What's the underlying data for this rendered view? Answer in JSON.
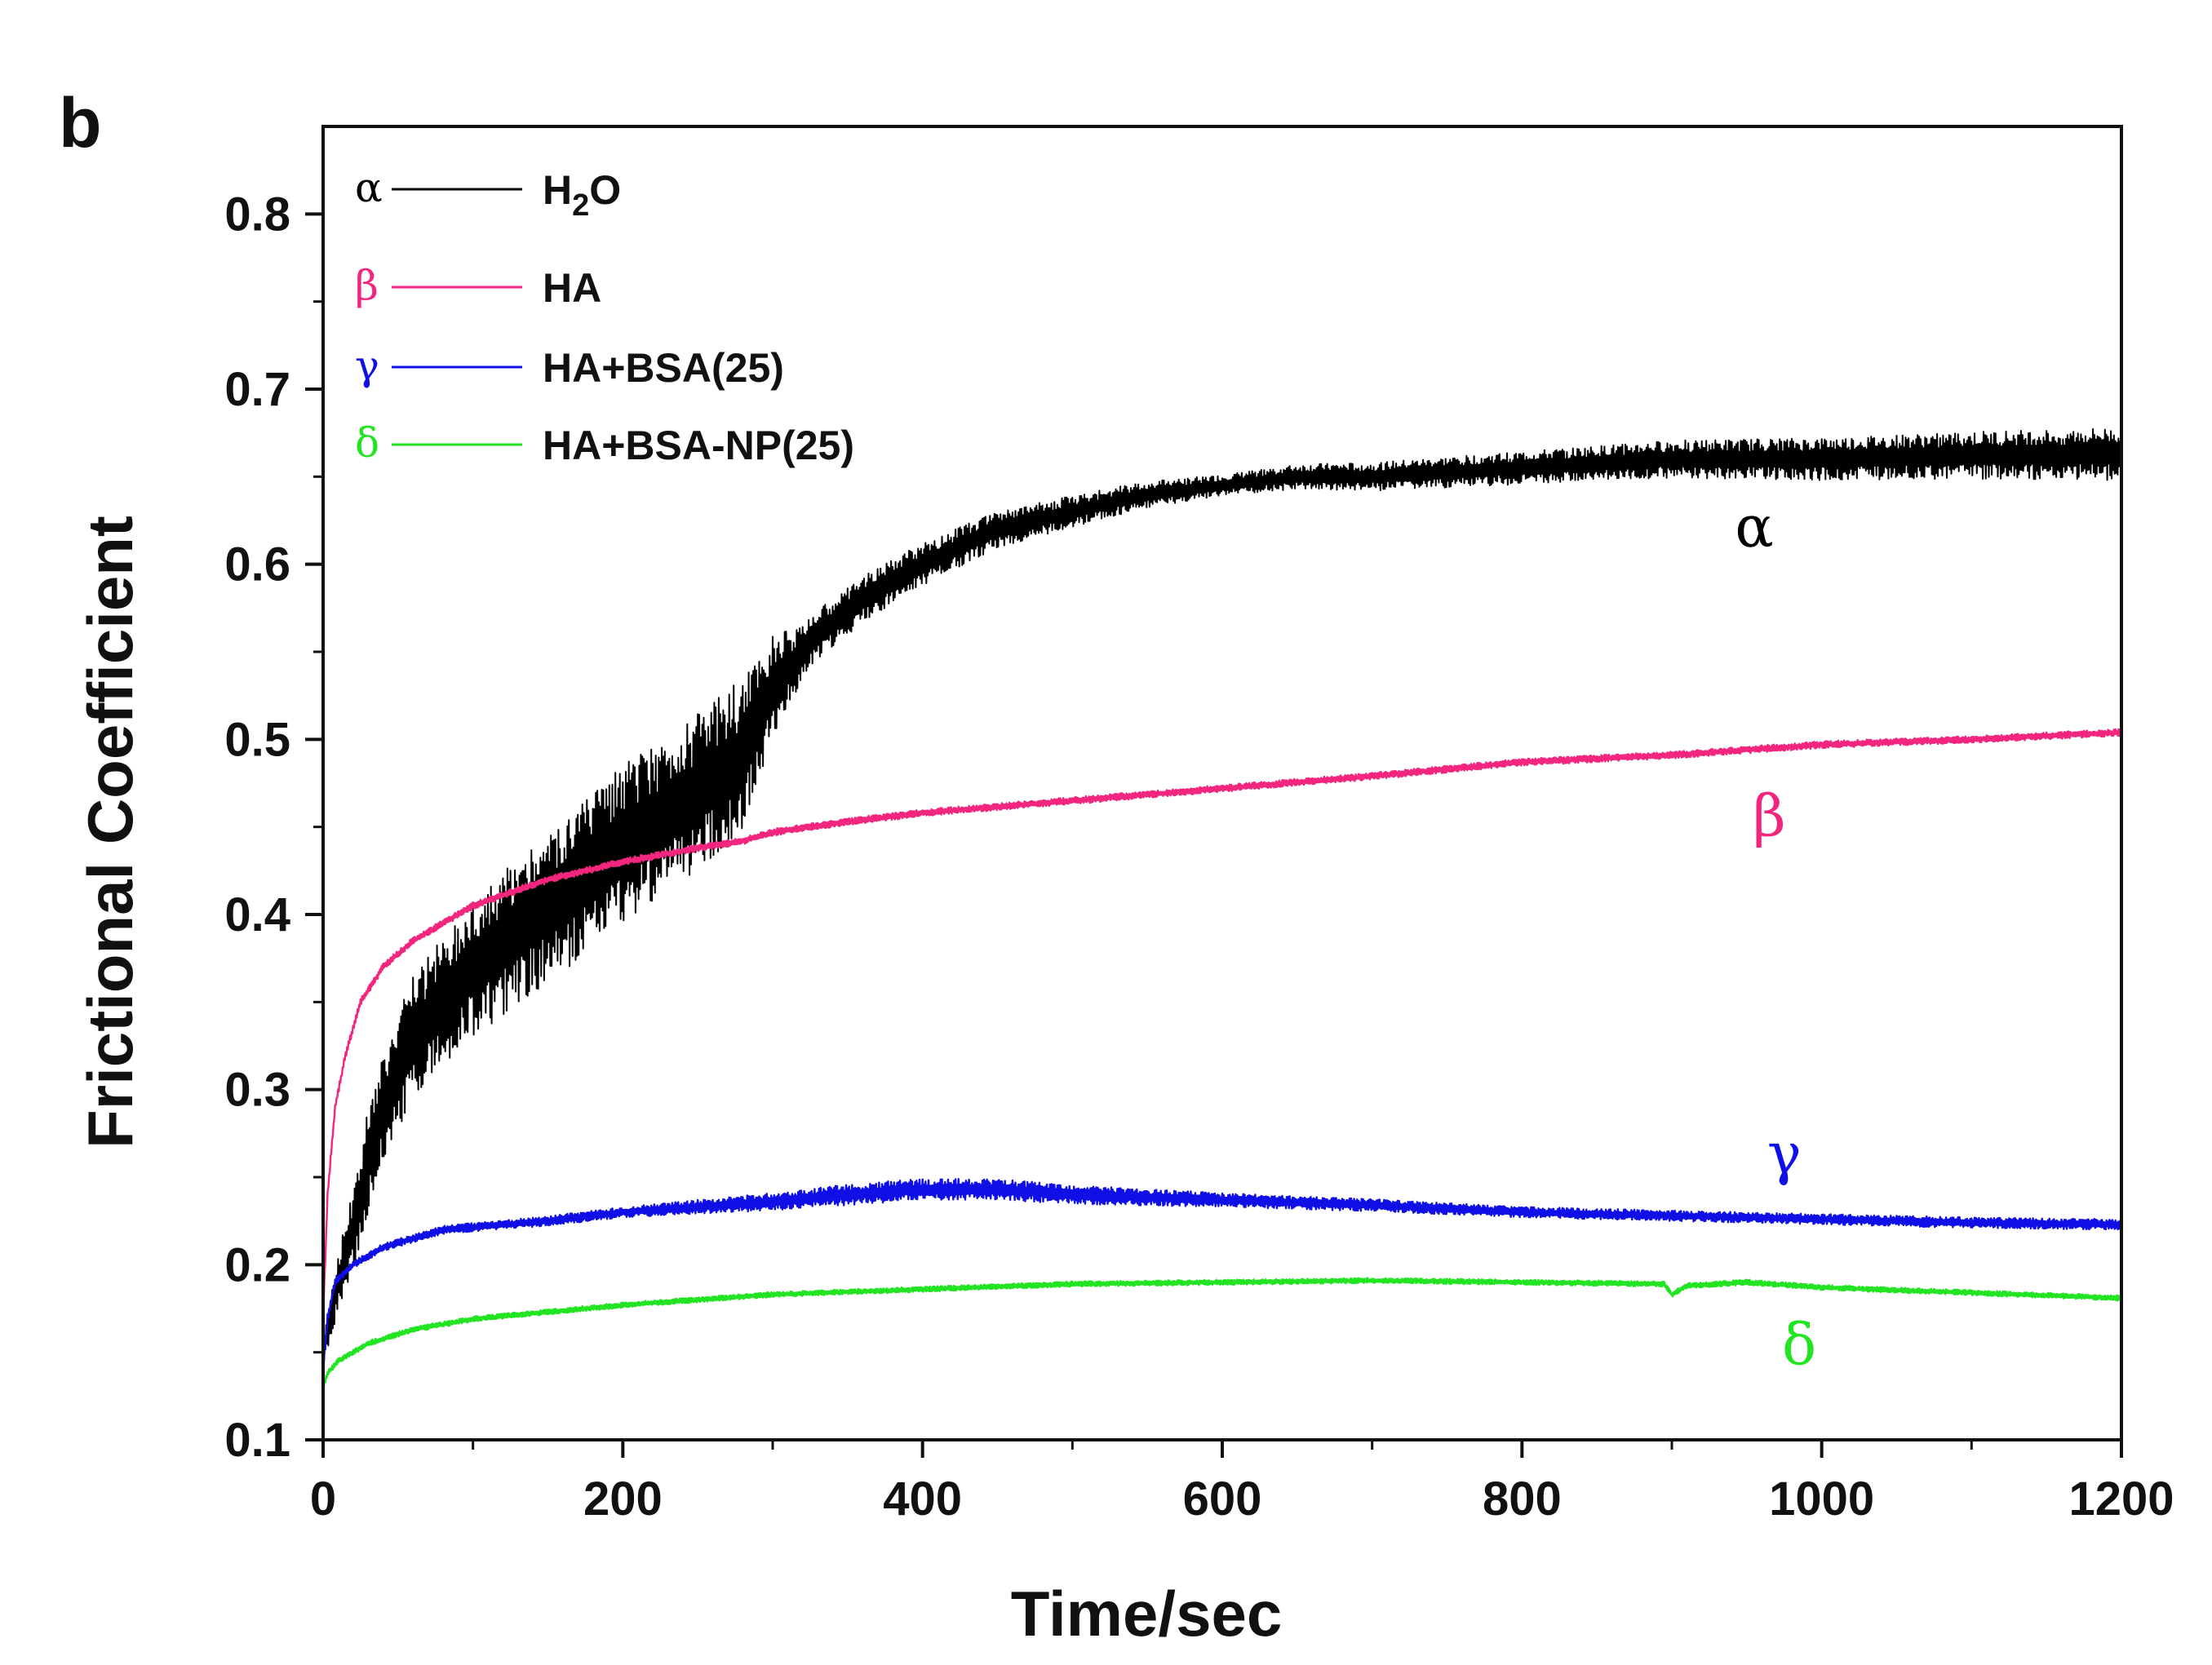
{
  "panel_label": "b",
  "chart_data": {
    "type": "line",
    "xlabel": "Time/sec",
    "ylabel": "Frictional Coefficient",
    "xlim": [
      0,
      1200
    ],
    "ylim": [
      0.1,
      0.85
    ],
    "xticks": [
      0,
      200,
      400,
      600,
      800,
      1000,
      1200
    ],
    "xtick_labels": [
      "0",
      "200",
      "400",
      "600",
      "800",
      "1000",
      "1200"
    ],
    "yticks": [
      0.1,
      0.2,
      0.3,
      0.4,
      0.5,
      0.6,
      0.7,
      0.8
    ],
    "ytick_labels": [
      "0.1",
      "0.2",
      "0.3",
      "0.4",
      "0.5",
      "0.6",
      "0.7",
      "0.8"
    ],
    "grid": false,
    "legend_position": "top-left",
    "series": [
      {
        "key": "alpha",
        "symbol": "α",
        "name_base": "H",
        "name_sub": "2",
        "name_tail": "O",
        "name": "H2O",
        "color": "#000000",
        "annotation": "α",
        "annotation_pos": [
          955,
          0.61
        ],
        "points": [
          [
            0,
            0.15
          ],
          [
            5,
            0.17
          ],
          [
            10,
            0.19
          ],
          [
            20,
            0.22
          ],
          [
            30,
            0.26
          ],
          [
            40,
            0.29
          ],
          [
            50,
            0.31
          ],
          [
            60,
            0.33
          ],
          [
            80,
            0.35
          ],
          [
            100,
            0.37
          ],
          [
            130,
            0.39
          ],
          [
            160,
            0.41
          ],
          [
            200,
            0.44
          ],
          [
            250,
            0.47
          ],
          [
            280,
            0.49
          ],
          [
            300,
            0.53
          ],
          [
            330,
            0.56
          ],
          [
            360,
            0.58
          ],
          [
            400,
            0.6
          ],
          [
            450,
            0.62
          ],
          [
            500,
            0.63
          ],
          [
            550,
            0.64
          ],
          [
            600,
            0.645
          ],
          [
            650,
            0.65
          ],
          [
            700,
            0.65
          ],
          [
            800,
            0.655
          ],
          [
            900,
            0.66
          ],
          [
            1000,
            0.66
          ],
          [
            1100,
            0.662
          ],
          [
            1200,
            0.663
          ]
        ],
        "noise": [
          [
            0,
            0.01
          ],
          [
            30,
            0.03
          ],
          [
            100,
            0.04
          ],
          [
            200,
            0.045
          ],
          [
            280,
            0.045
          ],
          [
            320,
            0.015
          ],
          [
            400,
            0.012
          ],
          [
            600,
            0.006
          ],
          [
            700,
            0.008
          ],
          [
            1000,
            0.012
          ],
          [
            1200,
            0.015
          ]
        ]
      },
      {
        "key": "beta",
        "symbol": "β",
        "name": "HA",
        "color": "#f2267e",
        "annotation": "β",
        "annotation_pos": [
          965,
          0.445
        ],
        "points": [
          [
            0,
            0.17
          ],
          [
            3,
            0.24
          ],
          [
            8,
            0.29
          ],
          [
            15,
            0.32
          ],
          [
            25,
            0.35
          ],
          [
            40,
            0.37
          ],
          [
            60,
            0.385
          ],
          [
            100,
            0.405
          ],
          [
            150,
            0.42
          ],
          [
            200,
            0.43
          ],
          [
            250,
            0.438
          ],
          [
            280,
            0.442
          ],
          [
            300,
            0.447
          ],
          [
            350,
            0.453
          ],
          [
            400,
            0.458
          ],
          [
            500,
            0.465
          ],
          [
            600,
            0.472
          ],
          [
            700,
            0.479
          ],
          [
            800,
            0.487
          ],
          [
            900,
            0.491
          ],
          [
            1000,
            0.497
          ],
          [
            1100,
            0.5
          ],
          [
            1200,
            0.504
          ]
        ],
        "noise": [
          [
            0,
            0.002
          ],
          [
            1200,
            0.002
          ]
        ]
      },
      {
        "key": "gamma",
        "symbol": "γ",
        "name": "HA+BSA(25)",
        "color": "#1010e6",
        "annotation": "γ",
        "annotation_pos": [
          975,
          0.252
        ],
        "points": [
          [
            0,
            0.14
          ],
          [
            3,
            0.17
          ],
          [
            8,
            0.19
          ],
          [
            20,
            0.2
          ],
          [
            40,
            0.21
          ],
          [
            80,
            0.22
          ],
          [
            150,
            0.225
          ],
          [
            200,
            0.23
          ],
          [
            300,
            0.236
          ],
          [
            350,
            0.24
          ],
          [
            400,
            0.243
          ],
          [
            450,
            0.243
          ],
          [
            500,
            0.24
          ],
          [
            600,
            0.237
          ],
          [
            700,
            0.234
          ],
          [
            800,
            0.23
          ],
          [
            900,
            0.228
          ],
          [
            1000,
            0.226
          ],
          [
            1100,
            0.224
          ],
          [
            1200,
            0.223
          ]
        ],
        "noise": [
          [
            0,
            0.002
          ],
          [
            200,
            0.003
          ],
          [
            350,
            0.006
          ],
          [
            450,
            0.006
          ],
          [
            600,
            0.004
          ],
          [
            800,
            0.003
          ],
          [
            1200,
            0.003
          ]
        ]
      },
      {
        "key": "delta",
        "symbol": "δ",
        "name": "HA+BSA-NP(25)",
        "color": "#22e422",
        "annotation": "δ",
        "annotation_pos": [
          985,
          0.143
        ],
        "points": [
          [
            0,
            0.13
          ],
          [
            3,
            0.138
          ],
          [
            10,
            0.145
          ],
          [
            30,
            0.155
          ],
          [
            60,
            0.163
          ],
          [
            100,
            0.169
          ],
          [
            200,
            0.177
          ],
          [
            300,
            0.183
          ],
          [
            400,
            0.186
          ],
          [
            500,
            0.189
          ],
          [
            600,
            0.19
          ],
          [
            700,
            0.191
          ],
          [
            800,
            0.19
          ],
          [
            895,
            0.189
          ],
          [
            900,
            0.183
          ],
          [
            910,
            0.188
          ],
          [
            950,
            0.19
          ],
          [
            1000,
            0.187
          ],
          [
            1100,
            0.184
          ],
          [
            1200,
            0.181
          ]
        ],
        "noise": [
          [
            0,
            0.0015
          ],
          [
            1200,
            0.0015
          ]
        ]
      }
    ]
  }
}
